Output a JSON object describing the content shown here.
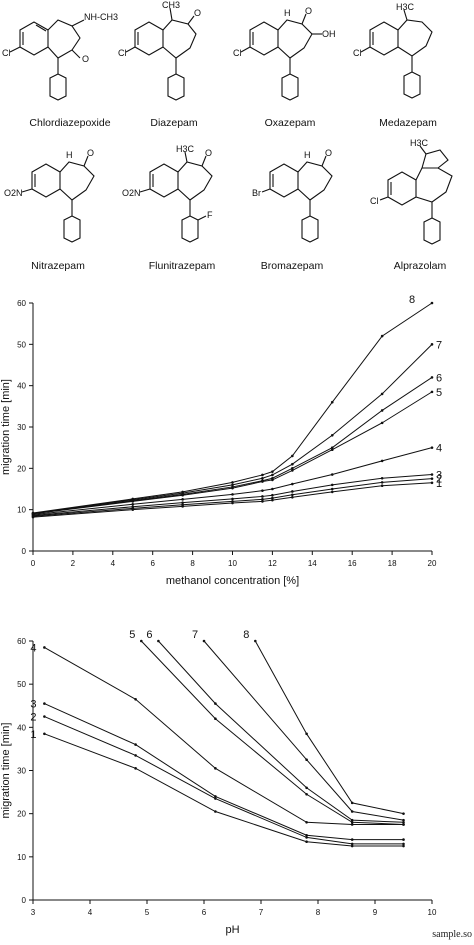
{
  "structures": [
    {
      "name": "Chlordiazepoxide",
      "atoms": {
        "sub": "NH-CH3",
        "n_oxide": "O",
        "hal": "Cl"
      }
    },
    {
      "name": "Diazepam",
      "atoms": {
        "methyl": "CH3",
        "o": "O",
        "hal": "Cl"
      }
    },
    {
      "name": "Oxazepam",
      "atoms": {
        "nh": "H",
        "o": "O",
        "oh": "OH",
        "hal": "Cl"
      }
    },
    {
      "name": "Medazepam",
      "atoms": {
        "methyl": "H3C",
        "hal": "Cl"
      }
    },
    {
      "name": "Nitrazepam",
      "atoms": {
        "nh": "H",
        "o": "O",
        "no2": "O2N"
      }
    },
    {
      "name": "Flunitrazepam",
      "atoms": {
        "methyl": "H3C",
        "o": "O",
        "no2": "O2N",
        "f": "F"
      }
    },
    {
      "name": "Bromazepam",
      "atoms": {
        "nh": "H",
        "o": "O",
        "br": "Br"
      }
    },
    {
      "name": "Alprazolam",
      "atoms": {
        "methyl": "H3C",
        "hal": "Cl"
      }
    }
  ],
  "chart_data": [
    {
      "type": "line",
      "xlabel": "methanol concentration [%]",
      "ylabel": "migration time [min]",
      "xlim": [
        0,
        20
      ],
      "ylim": [
        0,
        60
      ],
      "xticks": [
        0,
        2,
        4,
        6,
        8,
        10,
        12,
        14,
        16,
        18,
        20
      ],
      "yticks": [
        0,
        10,
        20,
        30,
        40,
        50,
        60
      ],
      "x": [
        0,
        5,
        7.5,
        10,
        11.5,
        12,
        13,
        15,
        17.5,
        20
      ],
      "series": [
        {
          "name": "1",
          "values": [
            8.2,
            10.0,
            10.8,
            11.6,
            12.0,
            12.3,
            13.0,
            14.3,
            15.8,
            16.5
          ]
        },
        {
          "name": "2",
          "values": [
            8.4,
            10.3,
            11.2,
            12.0,
            12.5,
            12.8,
            13.6,
            15.0,
            16.6,
            17.5
          ]
        },
        {
          "name": "3",
          "values": [
            8.6,
            10.7,
            11.7,
            12.6,
            13.2,
            13.5,
            14.4,
            16.0,
            17.6,
            18.5
          ]
        },
        {
          "name": "4",
          "values": [
            8.8,
            11.3,
            12.5,
            13.7,
            14.6,
            15.0,
            16.2,
            18.5,
            21.8,
            25.0
          ]
        },
        {
          "name": "5",
          "values": [
            9.0,
            12.0,
            13.5,
            15.2,
            16.8,
            17.2,
            19.5,
            24.5,
            31.0,
            38.5
          ]
        },
        {
          "name": "6",
          "values": [
            9.0,
            12.2,
            13.7,
            15.5,
            17.0,
            17.6,
            20.0,
            25.0,
            34.0,
            42.0
          ]
        },
        {
          "name": "7",
          "values": [
            9.1,
            12.4,
            14.0,
            16.0,
            17.6,
            18.4,
            21.0,
            28.0,
            38.0,
            50.0
          ]
        },
        {
          "name": "8",
          "values": [
            9.2,
            12.6,
            14.3,
            16.6,
            18.4,
            19.2,
            23.0,
            36.0,
            52.0,
            65.0
          ]
        }
      ]
    },
    {
      "type": "line",
      "xlabel": "pH",
      "ylabel": "migration time [min]",
      "xlim": [
        3,
        10
      ],
      "ylim": [
        0,
        60
      ],
      "xticks": [
        3,
        4,
        5,
        6,
        7,
        8,
        9,
        10
      ],
      "yticks": [
        0,
        10,
        20,
        30,
        40,
        50,
        60
      ],
      "series": [
        {
          "name": "1",
          "x": [
            3.2,
            4.8,
            6.2,
            7.8,
            8.6,
            9.5
          ],
          "values": [
            38.5,
            30.5,
            20.5,
            13.5,
            12.5,
            12.5
          ]
        },
        {
          "name": "2",
          "x": [
            3.2,
            4.8,
            6.2,
            7.8,
            8.6,
            9.5
          ],
          "values": [
            42.5,
            33.5,
            23.5,
            14.5,
            13.0,
            13.0
          ]
        },
        {
          "name": "3",
          "x": [
            3.2,
            4.8,
            6.2,
            7.8,
            8.6,
            9.5
          ],
          "values": [
            45.5,
            36.0,
            24.0,
            15.0,
            14.0,
            14.0
          ]
        },
        {
          "name": "4",
          "x": [
            3.2,
            4.8,
            6.2,
            7.8,
            8.6,
            9.5
          ],
          "values": [
            58.5,
            46.5,
            30.5,
            18.0,
            17.5,
            17.5
          ]
        },
        {
          "name": "5",
          "x": [
            4.9,
            6.2,
            7.8,
            8.6,
            9.5
          ],
          "values": [
            60.0,
            42.0,
            24.5,
            18.0,
            17.5
          ]
        },
        {
          "name": "6",
          "x": [
            5.2,
            6.2,
            7.8,
            8.6,
            9.5
          ],
          "values": [
            60.0,
            45.5,
            26.0,
            18.5,
            18.0
          ]
        },
        {
          "name": "7",
          "x": [
            6.0,
            7.8,
            8.6,
            9.5
          ],
          "values": [
            60.0,
            32.5,
            20.5,
            18.5
          ]
        },
        {
          "name": "8",
          "x": [
            6.9,
            7.8,
            8.6,
            9.5
          ],
          "values": [
            60.0,
            38.5,
            22.5,
            20.0
          ]
        }
      ],
      "series_label_order": [
        "4",
        "3",
        "2",
        "1",
        "5",
        "6",
        "7",
        "8"
      ]
    }
  ],
  "footer": {
    "watermark": "sample.so"
  }
}
